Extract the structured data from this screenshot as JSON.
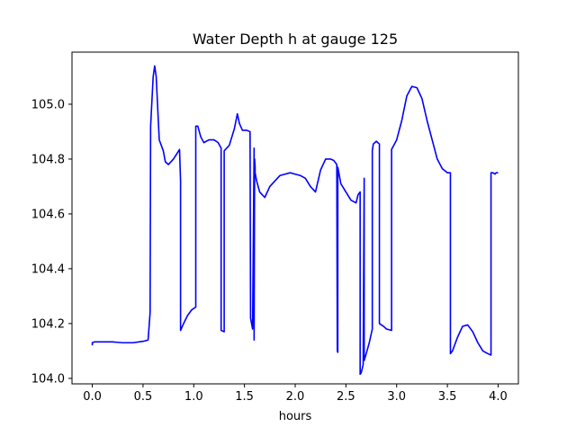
{
  "chart_data": {
    "type": "line",
    "title": "Water Depth h at gauge 125",
    "xlabel": "hours",
    "ylabel": "",
    "xlim": [
      -0.2,
      4.2
    ],
    "ylim": [
      103.98,
      105.19
    ],
    "xticks": [
      0.0,
      0.5,
      1.0,
      1.5,
      2.0,
      2.5,
      3.0,
      3.5,
      4.0
    ],
    "xtick_labels": [
      "0.0",
      "0.5",
      "1.0",
      "1.5",
      "2.0",
      "2.5",
      "3.0",
      "3.5",
      "4.0"
    ],
    "yticks": [
      104.0,
      104.2,
      104.4,
      104.6,
      104.8,
      105.0
    ],
    "ytick_labels": [
      "104.0",
      "104.2",
      "104.4",
      "104.6",
      "104.8",
      "105.0"
    ],
    "grid": false,
    "series": [
      {
        "color": "#0000ff",
        "x": [
          0.0,
          0.0,
          0.02,
          0.2,
          0.3,
          0.4,
          0.5,
          0.55,
          0.57,
          0.575,
          0.6,
          0.615,
          0.63,
          0.66,
          0.68,
          0.7,
          0.72,
          0.75,
          0.8,
          0.86,
          0.87,
          0.87,
          0.9,
          0.94,
          0.98,
          1.02,
          1.02,
          1.04,
          1.07,
          1.1,
          1.15,
          1.2,
          1.24,
          1.27,
          1.27,
          1.3,
          1.3,
          1.35,
          1.4,
          1.43,
          1.45,
          1.48,
          1.52,
          1.555,
          1.56,
          1.56,
          1.58,
          1.595,
          1.595,
          1.6,
          1.605,
          1.605,
          1.62,
          1.65,
          1.7,
          1.75,
          1.8,
          1.85,
          1.9,
          1.95,
          2.0,
          2.05,
          2.1,
          2.15,
          2.2,
          2.25,
          2.3,
          2.35,
          2.38,
          2.41,
          2.415,
          2.42,
          2.42,
          2.45,
          2.5,
          2.55,
          2.6,
          2.62,
          2.64,
          2.64,
          2.65,
          2.67,
          2.68,
          2.68,
          2.7,
          2.73,
          2.76,
          2.76,
          2.77,
          2.8,
          2.83,
          2.83,
          2.87,
          2.9,
          2.95,
          2.95,
          3.0,
          3.05,
          3.1,
          3.15,
          3.2,
          3.25,
          3.3,
          3.35,
          3.4,
          3.45,
          3.5,
          3.53,
          3.53,
          3.55,
          3.6,
          3.65,
          3.7,
          3.75,
          3.8,
          3.85,
          3.9,
          3.93,
          3.93,
          3.95,
          3.97,
          3.98,
          4.0
        ],
        "y": [
          104.12,
          104.13,
          104.133,
          104.133,
          104.13,
          104.13,
          104.135,
          104.14,
          104.24,
          104.92,
          105.1,
          105.14,
          105.1,
          104.87,
          104.85,
          104.83,
          104.79,
          104.78,
          104.8,
          104.835,
          104.72,
          104.175,
          104.2,
          104.23,
          104.25,
          104.26,
          104.92,
          104.92,
          104.88,
          104.86,
          104.87,
          104.87,
          104.86,
          104.84,
          104.175,
          104.17,
          104.83,
          104.85,
          104.91,
          104.965,
          104.93,
          104.905,
          104.905,
          104.9,
          104.24,
          104.22,
          104.18,
          104.84,
          104.14,
          104.8,
          104.77,
          104.75,
          104.72,
          104.68,
          104.66,
          104.7,
          104.72,
          104.74,
          104.745,
          104.75,
          104.745,
          104.74,
          104.73,
          104.7,
          104.68,
          104.76,
          104.8,
          104.8,
          104.795,
          104.78,
          104.1,
          104.095,
          104.77,
          104.71,
          104.68,
          104.65,
          104.64,
          104.67,
          104.68,
          104.015,
          104.02,
          104.05,
          104.73,
          104.065,
          104.09,
          104.13,
          104.18,
          104.83,
          104.855,
          104.865,
          104.855,
          104.2,
          104.19,
          104.18,
          104.175,
          104.835,
          104.87,
          104.94,
          105.03,
          105.065,
          105.06,
          105.02,
          104.94,
          104.87,
          104.8,
          104.765,
          104.75,
          104.75,
          104.09,
          104.1,
          104.15,
          104.19,
          104.195,
          104.17,
          104.13,
          104.1,
          104.09,
          104.085,
          104.75,
          104.75,
          104.745,
          104.75,
          104.75
        ]
      }
    ]
  }
}
